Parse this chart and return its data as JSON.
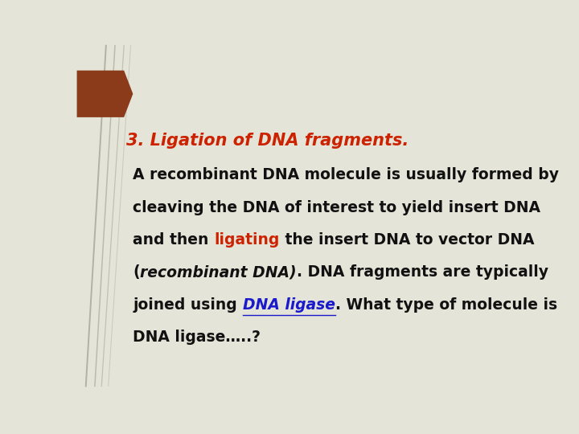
{
  "background_color": "#e4e4d8",
  "title_text": "3. Ligation of DNA fragments.",
  "title_color": "#cc2200",
  "title_fontsize": 15,
  "body_fontsize": 13.5,
  "arrow_color": "#8b3a1a",
  "lines_color": "#8a8878",
  "body_lines": [
    [
      {
        "text": "A recombinant DNA molecule is usually formed by",
        "style": "bold",
        "color": "#111111"
      }
    ],
    [
      {
        "text": "cleaving the DNA of interest to yield insert DNA",
        "style": "bold",
        "color": "#111111"
      }
    ],
    [
      {
        "text": "and then ",
        "style": "bold",
        "color": "#111111"
      },
      {
        "text": "ligating",
        "style": "bold",
        "color": "#cc2200"
      },
      {
        "text": " the insert DNA to vector DNA",
        "style": "bold",
        "color": "#111111"
      }
    ],
    [
      {
        "text": "(",
        "style": "bold",
        "color": "#111111"
      },
      {
        "text": "recombinant DNA)",
        "style": "bolditalic",
        "color": "#111111"
      },
      {
        "text": ". DNA fragments are typically",
        "style": "bold",
        "color": "#111111"
      }
    ],
    [
      {
        "text": "joined using ",
        "style": "bold",
        "color": "#111111"
      },
      {
        "text": "DNA ligase",
        "style": "bolditalic_underline",
        "color": "#1a1acc"
      },
      {
        "text": ". What type of molecule is",
        "style": "bold",
        "color": "#111111"
      }
    ],
    [
      {
        "text": "DNA ligase…..?",
        "style": "bold",
        "color": "#111111"
      }
    ]
  ]
}
